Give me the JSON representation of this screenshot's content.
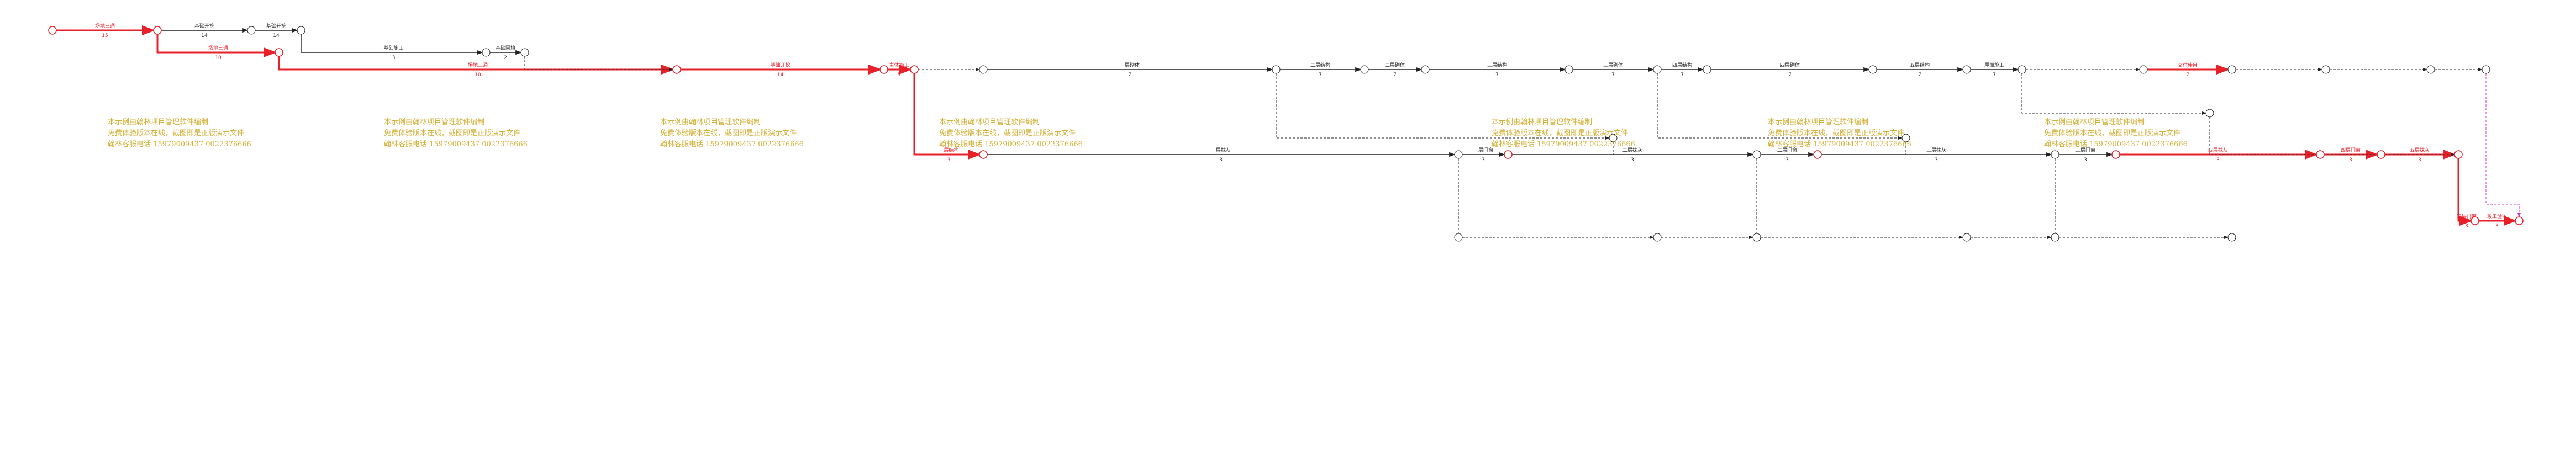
{
  "colors": {
    "critical": "#e8202a",
    "normal": "#222222",
    "dummy": "#cc33cc",
    "watermark": "#d4b23a",
    "node_fill": "#ffffff"
  },
  "watermarks": [
    {
      "lines": [
        "本示例由翰林项目管理软件编制",
        "免费体验版本在线，截图即是正版演示文件",
        "翰林客服电话 15979009437 0022376666"
      ]
    },
    {
      "lines": [
        "本示例由翰林项目管理软件编制",
        "免费体验版本在线，截图即是正版演示文件",
        "翰林客服电话 15979009437 0022376666"
      ]
    },
    {
      "lines": [
        "本示例由翰林项目管理软件编制",
        "免费体验版本在线，截图即是正版演示文件",
        "翰林客服电话 15979009437 0022376666"
      ]
    },
    {
      "lines": [
        "本示例由翰林项目管理软件编制",
        "免费体验版本在线，截图即是正版演示文件",
        "翰林客服电话 15979009437 0022376666"
      ]
    },
    {
      "lines": [
        "本示例由翰林项目管理软件编制",
        "免费体验版本在线，截图即是正版演示文件",
        "翰林客服电话 15979009437 0022376666"
      ]
    },
    {
      "lines": [
        "本示例由翰林项目管理软件编制",
        "免费体验版本在线，截图即是正版演示文件",
        "翰林客服电话 15979009437 0022376666"
      ]
    },
    {
      "lines": [
        "本示例由翰林项目管理软件编制",
        "免费体验版本在线，截图即是正版演示文件",
        "翰林客服电话 15979009437 0022376666"
      ]
    }
  ],
  "activities": [
    {
      "label": "场地三通",
      "duration": "15",
      "critical": true
    },
    {
      "label": "场地三通",
      "duration": "10",
      "critical": true
    },
    {
      "label": "基础开挖",
      "duration": "14",
      "critical": false
    },
    {
      "label": "基础开挖",
      "duration": "14",
      "critical": false
    },
    {
      "label": "场地三通",
      "duration": "10",
      "critical": true
    },
    {
      "label": "基础开挖",
      "duration": "14",
      "critical": true
    },
    {
      "label": "基础施工",
      "duration": "3",
      "critical": false
    },
    {
      "label": "基础回填",
      "duration": "2",
      "critical": false
    },
    {
      "label": "主体施工",
      "duration": "5",
      "critical": true
    },
    {
      "label": "一层结构",
      "duration": "3",
      "critical": true
    },
    {
      "label": "一层砌体",
      "duration": "7",
      "critical": false
    },
    {
      "label": "二层结构",
      "duration": "7",
      "critical": false
    },
    {
      "label": "二层砌体",
      "duration": "7",
      "critical": false
    },
    {
      "label": "三层结构",
      "duration": "7",
      "critical": false
    },
    {
      "label": "三层砌体",
      "duration": "7",
      "critical": false
    },
    {
      "label": "四层结构",
      "duration": "7",
      "critical": false
    },
    {
      "label": "四层砌体",
      "duration": "7",
      "critical": false
    },
    {
      "label": "五层结构",
      "duration": "7",
      "critical": false
    },
    {
      "label": "屋面施工",
      "duration": "7",
      "critical": false
    },
    {
      "label": "一层抹灰",
      "duration": "3",
      "critical": false
    },
    {
      "label": "一层门窗",
      "duration": "3",
      "critical": false
    },
    {
      "label": "二层抹灰",
      "duration": "3",
      "critical": false
    },
    {
      "label": "二层门窗",
      "duration": "3",
      "critical": false
    },
    {
      "label": "三层抹灰",
      "duration": "3",
      "critical": false
    },
    {
      "label": "三层门窗",
      "duration": "3",
      "critical": false
    },
    {
      "label": "四层抹灰",
      "duration": "3",
      "critical": true
    },
    {
      "label": "四层门窗",
      "duration": "3",
      "critical": true
    },
    {
      "label": "五层抹灰",
      "duration": "3",
      "critical": true
    },
    {
      "label": "五层门窗",
      "duration": "3",
      "critical": true
    },
    {
      "label": "竣工验收",
      "duration": "3",
      "critical": true
    },
    {
      "label": "交付使用",
      "duration": "7",
      "critical": true
    }
  ]
}
